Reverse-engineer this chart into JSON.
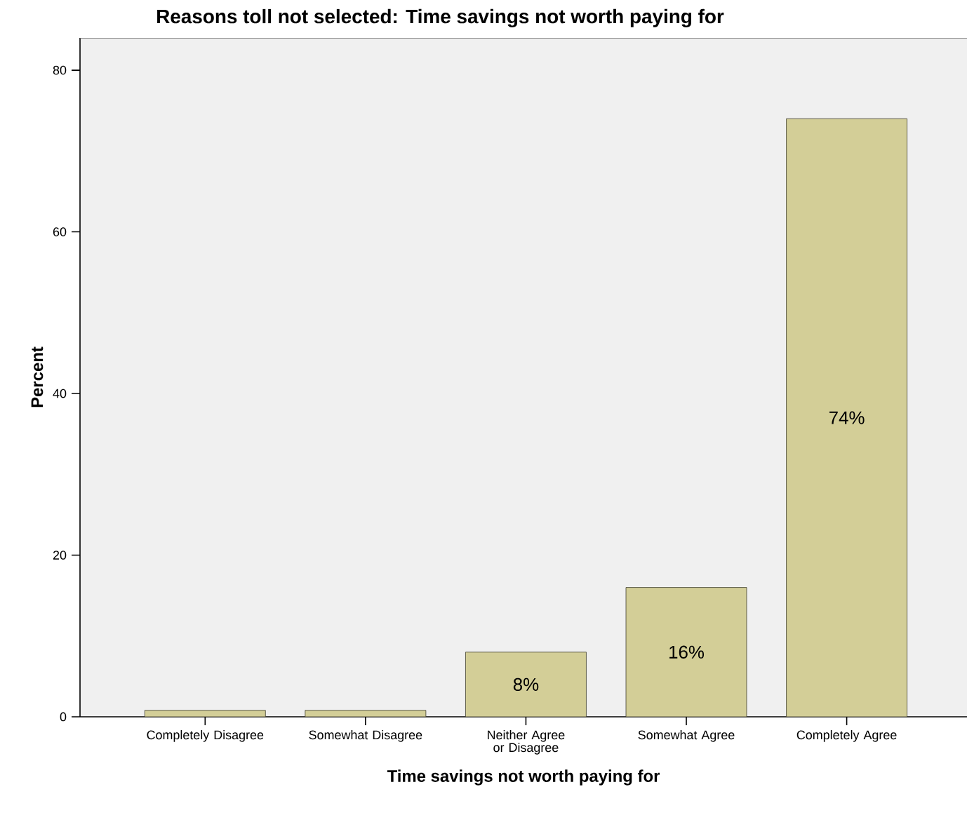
{
  "chart_data": {
    "type": "bar",
    "title": "Reasons toll not selected: Time savings not worth paying for",
    "xlabel": "Time savings not worth paying for",
    "ylabel": "Percent",
    "categories": [
      "Completely Disagree",
      "Somewhat Disagree",
      "Neither Agree or Disagree",
      "Somewhat Agree",
      "Completely Agree"
    ],
    "values": [
      0.8,
      0.8,
      8,
      16,
      74
    ],
    "value_labels": [
      null,
      null,
      "8%",
      "16%",
      "74%"
    ],
    "color": "#d3ce97",
    "ylim": [
      0,
      84
    ],
    "yticks": [
      0,
      20,
      40,
      60,
      80
    ]
  }
}
